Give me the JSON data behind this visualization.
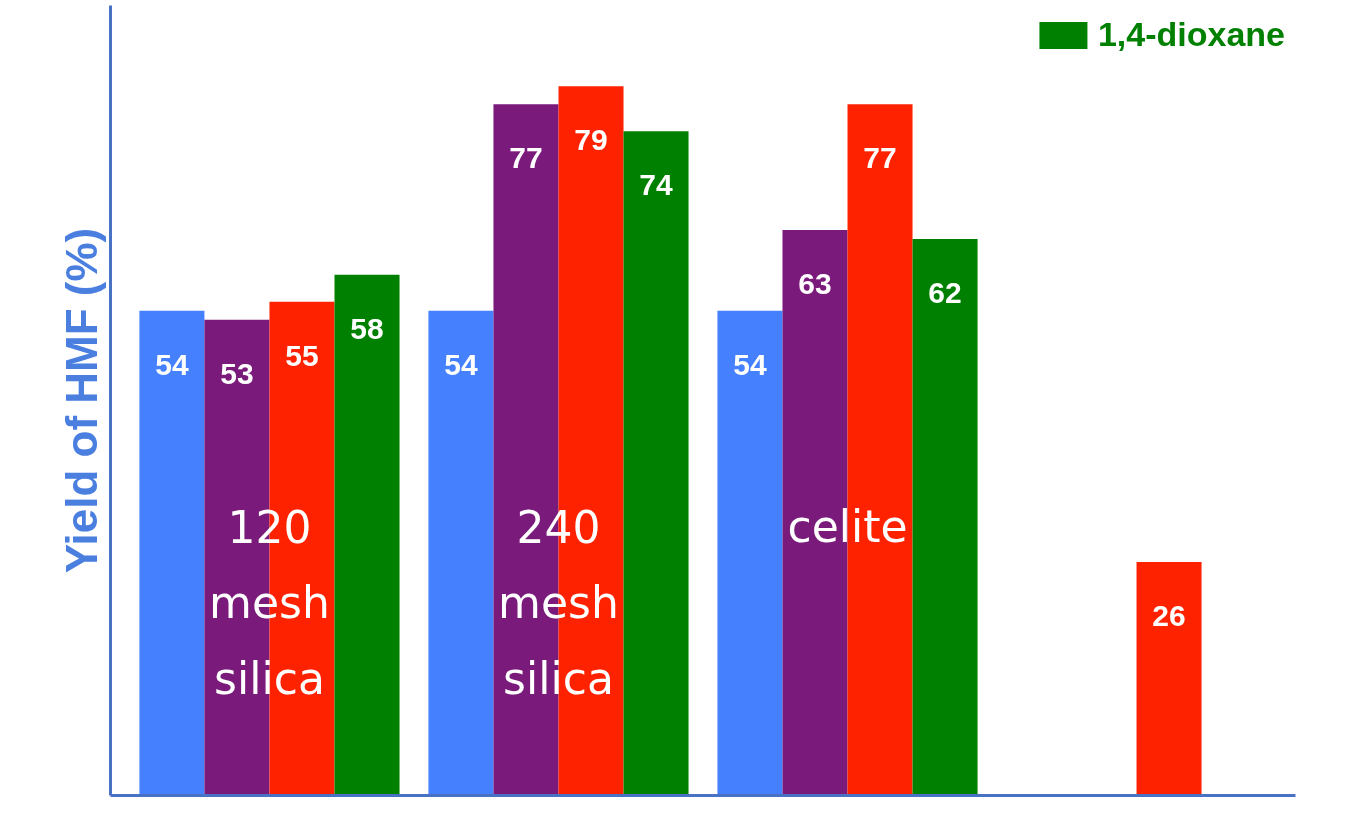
{
  "chart_data": {
    "type": "bar",
    "ylabel": "Yield of HMF (%)",
    "categories": [
      "120 mesh silica",
      "240 mesh silica",
      "celite",
      null
    ],
    "series": [
      {
        "color": "#4580ff",
        "values": [
          54,
          54,
          54,
          null
        ]
      },
      {
        "color": "#7a1a7a",
        "values": [
          53,
          77,
          63,
          null
        ]
      },
      {
        "color": "#ff2200",
        "values": [
          55,
          79,
          77,
          26
        ]
      },
      {
        "name": "1,4-dioxane",
        "color": "#008000",
        "values": [
          58,
          74,
          62,
          null
        ]
      }
    ],
    "ylim": [
      0,
      88
    ],
    "data_labels": true,
    "legend": "top right"
  }
}
